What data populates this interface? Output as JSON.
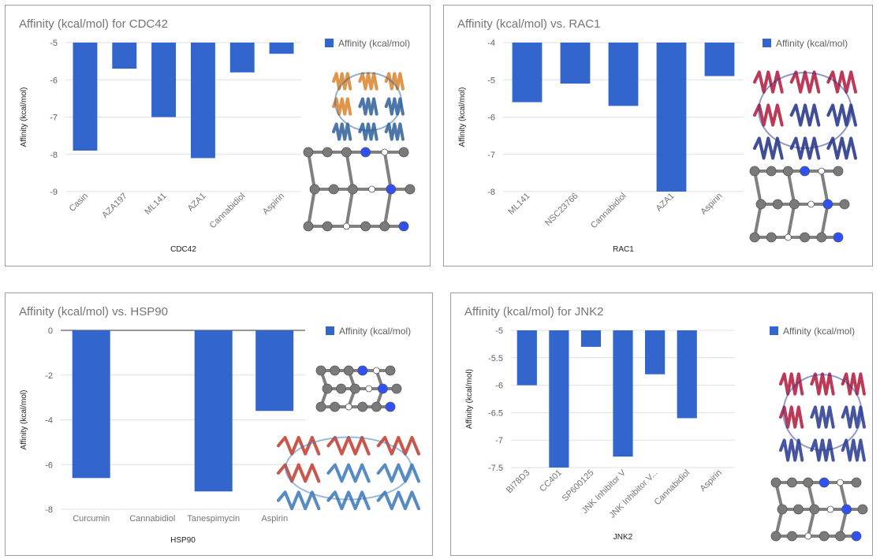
{
  "colors": {
    "bar": "#3366cc",
    "grid": "#e0e0e0",
    "frame": "#9e9e9e"
  },
  "chart_data": [
    {
      "type": "bar",
      "title": "Affinity (kcal/mol) for CDC42",
      "xlabel": "CDC42",
      "ylabel": "Affinity (kcal/mol)",
      "legend": {
        "label": "Affinity (kcal/mol)",
        "position": "top-right"
      },
      "ylim": [
        -9,
        -5
      ],
      "yticks": [
        -5,
        -6,
        -7,
        -8,
        -9
      ],
      "categories": [
        "Casin",
        "AZA197",
        "ML141",
        "AZA1",
        "Cannabidiol",
        "Aspirin"
      ],
      "series": [
        {
          "name": "Affinity (kcal/mol)",
          "values": [
            -7.9,
            -5.7,
            -7.0,
            -8.1,
            -5.8,
            -5.3
          ]
        }
      ],
      "rotated_labels": true,
      "grid": true,
      "images": [
        "protein-ribbon-image",
        "ligand-ball-stick-image"
      ]
    },
    {
      "type": "bar",
      "title": "Affinity (kcal/mol) vs. RAC1",
      "xlabel": "RAC1",
      "ylabel": "Affinity (kcal/mol)",
      "legend": {
        "label": "Affinity (kcal/mol)",
        "position": "top-right"
      },
      "ylim": [
        -8,
        -4
      ],
      "yticks": [
        -4,
        -5,
        -6,
        -7,
        -8
      ],
      "categories": [
        "ML141",
        "NSC23766",
        "Cannabidiol",
        "AZA1",
        "Aspirin"
      ],
      "series": [
        {
          "name": "Affinity (kcal/mol)",
          "values": [
            -5.6,
            -5.1,
            -5.7,
            -8.0,
            -4.9
          ]
        }
      ],
      "rotated_labels": true,
      "grid": true,
      "images": [
        "protein-ribbon-image",
        "ligand-ball-stick-image"
      ]
    },
    {
      "type": "bar",
      "title": "Affinity (kcal/mol) vs. HSP90",
      "xlabel": "HSP90",
      "ylabel": "Affinity (kcal/mol)",
      "legend": {
        "label": "Affinity (kcal/mol)",
        "position": "top-right"
      },
      "ylim": [
        -8,
        0
      ],
      "yticks": [
        0,
        -2,
        -4,
        -6,
        -8
      ],
      "categories": [
        "Curcumin",
        "Cannabidiol",
        "Tanespimycin",
        "Aspirin"
      ],
      "series": [
        {
          "name": "Affinity (kcal/mol)",
          "values": [
            -6.6,
            0,
            -7.2,
            -3.6
          ]
        }
      ],
      "rotated_labels": false,
      "grid": true,
      "images": [
        "ligand-ball-stick-image",
        "protein-ribbon-image"
      ]
    },
    {
      "type": "bar",
      "title": "Affinity (kcal/mol) for JNK2",
      "xlabel": "JNK2",
      "ylabel": "Affinity (kcal/mol)",
      "legend": {
        "label": "Affinity (kcal/mol)",
        "position": "top-right"
      },
      "ylim": [
        -7.5,
        -5
      ],
      "yticks": [
        -5,
        -5.5,
        -6,
        -6.5,
        -7,
        -7.5
      ],
      "categories": [
        "BI78D3",
        "CC401",
        "SP600125",
        "JNK Inhibitor V",
        "JNK Inhibitor V...",
        "Cannabidiol",
        "Aspirin"
      ],
      "series": [
        {
          "name": "Affinity (kcal/mol)",
          "values": [
            -6.0,
            -7.5,
            -5.3,
            -7.3,
            -5.8,
            -6.6,
            -5.0
          ]
        }
      ],
      "rotated_labels": true,
      "grid": true,
      "images": [
        "protein-ribbon-image",
        "ligand-ball-stick-image"
      ]
    }
  ]
}
